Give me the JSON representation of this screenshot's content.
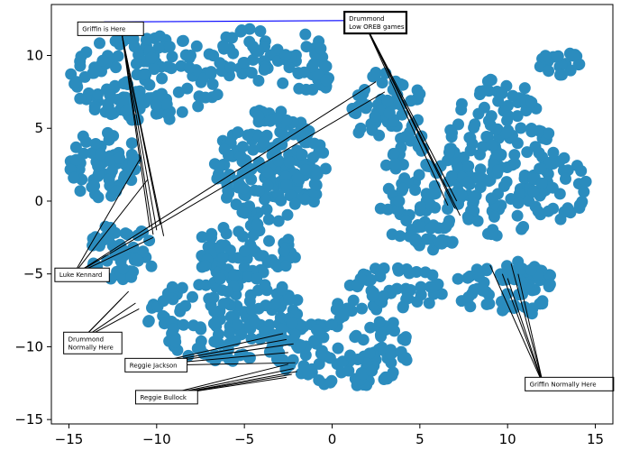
{
  "chart_data": {
    "type": "scatter",
    "title": "",
    "xlabel": "",
    "ylabel": "",
    "xlim": [
      -16,
      16
    ],
    "ylim": [
      -15.3,
      13.5
    ],
    "xticks": [
      -15,
      -10,
      -5,
      0,
      5,
      10,
      15
    ],
    "yticks": [
      -15,
      -10,
      -5,
      0,
      5,
      10
    ],
    "grid": false,
    "point_color": "#2b8cbe",
    "clusters": [
      {
        "cx": -10.5,
        "cy": 8.5,
        "rx": 4.5,
        "ry": 3.0,
        "n": 150
      },
      {
        "cx": -13.0,
        "cy": 2.5,
        "rx": 2.0,
        "ry": 2.5,
        "n": 60
      },
      {
        "cx": -12.0,
        "cy": -3.5,
        "rx": 2.0,
        "ry": 2.0,
        "n": 50
      },
      {
        "cx": -3.5,
        "cy": 2.5,
        "rx": 3.2,
        "ry": 4.0,
        "n": 180
      },
      {
        "cx": -5.0,
        "cy": -3.5,
        "rx": 3.0,
        "ry": 2.0,
        "n": 70
      },
      {
        "cx": -4.8,
        "cy": 10.0,
        "rx": 1.8,
        "ry": 2.0,
        "n": 40
      },
      {
        "cx": -1.5,
        "cy": 9.0,
        "rx": 1.5,
        "ry": 2.5,
        "n": 35
      },
      {
        "cx": 3.0,
        "cy": 6.5,
        "rx": 2.2,
        "ry": 2.5,
        "n": 60
      },
      {
        "cx": 5.5,
        "cy": 0.5,
        "rx": 3.0,
        "ry": 4.0,
        "n": 110
      },
      {
        "cx": 9.5,
        "cy": 3.0,
        "rx": 3.0,
        "ry": 5.5,
        "n": 150
      },
      {
        "cx": 12.8,
        "cy": 1.0,
        "rx": 1.8,
        "ry": 2.5,
        "n": 40
      },
      {
        "cx": 10.0,
        "cy": -6.0,
        "rx": 3.0,
        "ry": 2.0,
        "n": 70
      },
      {
        "cx": 13.0,
        "cy": 9.5,
        "rx": 1.2,
        "ry": 0.9,
        "n": 20
      },
      {
        "cx": -6.0,
        "cy": -8.0,
        "rx": 4.5,
        "ry": 3.0,
        "n": 140
      },
      {
        "cx": 0.5,
        "cy": -10.0,
        "rx": 4.0,
        "ry": 3.0,
        "n": 130
      },
      {
        "cx": 3.5,
        "cy": -6.0,
        "rx": 3.0,
        "ry": 1.5,
        "n": 50
      }
    ],
    "annotations": [
      {
        "label": "Griffin is Here",
        "line_color": "#0000ff",
        "box_x": -14.5,
        "box_y": 12.3,
        "anchor": "top-left",
        "targets": [
          [
            -13.0,
            12.3
          ],
          [
            1.0,
            12.4
          ]
        ],
        "lines_to_box": false
      },
      {
        "label": "Griffin is Here",
        "line_color": "#000000",
        "box_x": -13.0,
        "box_y": 11.9,
        "anchor": "none",
        "targets": [
          [
            -10.0,
            -2.0
          ],
          [
            -10.2,
            -2.3
          ],
          [
            -9.8,
            -1.6
          ],
          [
            -10.4,
            -1.8
          ],
          [
            -9.6,
            -2.4
          ]
        ],
        "lines_to_box": true
      },
      {
        "label": "Drummond\nLow OREB games",
        "bold": true,
        "line_color": "#000000",
        "box_x": 0.7,
        "box_y": 13.0,
        "anchor": "top-left",
        "targets": [
          [
            6.8,
            0.2
          ],
          [
            7.0,
            -0.5
          ],
          [
            7.3,
            -1.0
          ],
          [
            6.6,
            -0.3
          ],
          [
            7.1,
            0.0
          ]
        ],
        "lines_to_box": true
      },
      {
        "label": "Luke Kennard",
        "line_color": "#000000",
        "box_x": -15.8,
        "box_y": -4.6,
        "anchor": "top-left",
        "targets": [
          [
            -10.9,
            3.0
          ],
          [
            -10.5,
            1.5
          ],
          [
            2.5,
            8.2
          ],
          [
            3.0,
            7.5
          ],
          [
            -10.2,
            -2.5
          ]
        ],
        "lines_to_box": true
      },
      {
        "label": "Drummond\nNormally Here",
        "line_color": "#000000",
        "box_x": -15.3,
        "box_y": -9.0,
        "anchor": "top-left",
        "targets": [
          [
            -11.6,
            -6.2
          ],
          [
            -11.2,
            -7.0
          ],
          [
            -11.0,
            -7.4
          ],
          [
            -12.0,
            -6.7
          ]
        ],
        "lines_to_box": true
      },
      {
        "label": "Reggie Jackson",
        "line_color": "#000000",
        "box_x": -11.8,
        "box_y": -10.8,
        "anchor": "top-left",
        "targets": [
          [
            -2.8,
            -9.1
          ],
          [
            -2.6,
            -9.5
          ],
          [
            -2.2,
            -9.8
          ],
          [
            -2.5,
            -10.4
          ],
          [
            -2.1,
            -11.1
          ]
        ],
        "lines_to_box": true
      },
      {
        "label": "Reggie Bullock",
        "line_color": "#000000",
        "box_x": -11.2,
        "box_y": -13.0,
        "anchor": "top-left",
        "targets": [
          [
            -2.5,
            -11.2
          ],
          [
            -2.2,
            -11.5
          ],
          [
            -2.0,
            -11.7
          ],
          [
            -2.6,
            -12.1
          ],
          [
            -2.3,
            -11.9
          ]
        ],
        "lines_to_box": true
      },
      {
        "label": "Griffin Normally Here",
        "line_color": "#000000",
        "box_x": 11.0,
        "box_y": -12.1,
        "anchor": "top-left",
        "targets": [
          [
            9.0,
            -4.4
          ],
          [
            9.7,
            -5.0
          ],
          [
            10.0,
            -5.3
          ],
          [
            10.6,
            -5.0
          ],
          [
            10.2,
            -4.3
          ]
        ],
        "lines_to_box": true
      }
    ]
  }
}
